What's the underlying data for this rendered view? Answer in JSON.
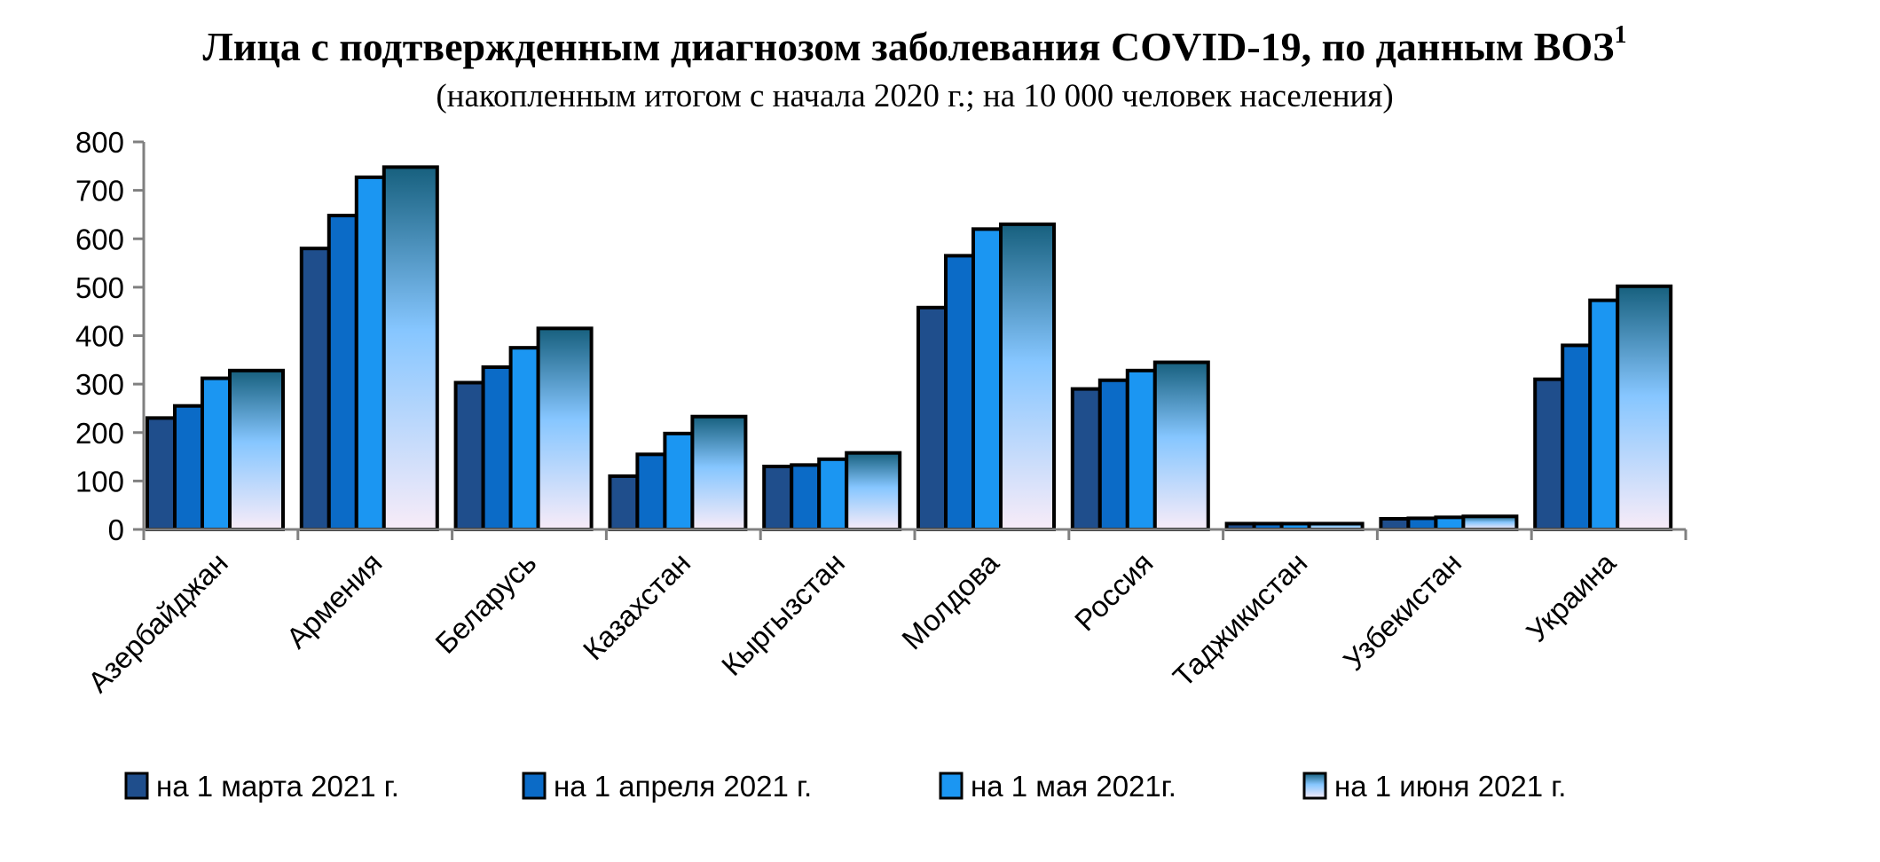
{
  "chart_data": {
    "type": "bar",
    "title": "Лица с подтвержденным диагнозом заболевания  COVID-19, по данным ВОЗ",
    "title_footnote": "1",
    "subtitle": "(накопленным итогом с начала 2020 г.; на 10 000 человек населения)",
    "xlabel": "",
    "ylabel": "",
    "ylim": [
      0,
      800
    ],
    "yticks": [
      "0",
      "100",
      "200",
      "300",
      "400",
      "500",
      "600",
      "700",
      "800"
    ],
    "grid": false,
    "legend_position": "bottom",
    "categories": [
      "Азербайджан",
      "Армения",
      "Беларусь",
      "Казахстан",
      "Кыргызстан",
      "Молдова",
      "Россия",
      "Таджикистан",
      "Узбекистан",
      "Украина"
    ],
    "series": [
      {
        "name": "на 1 марта 2021 г.",
        "color": "#1f4e8c",
        "values": [
          230,
          580,
          303,
          110,
          130,
          458,
          290,
          12,
          22,
          310
        ]
      },
      {
        "name": "на 1 апреля 2021 г.",
        "color": "#0b6bc7",
        "values": [
          255,
          648,
          335,
          155,
          133,
          565,
          308,
          12,
          23,
          380
        ]
      },
      {
        "name": "на 1 мая  2021г.",
        "color": "#1b96f2",
        "values": [
          312,
          727,
          375,
          198,
          145,
          620,
          328,
          12,
          25,
          473
        ]
      },
      {
        "name": "на 1 июня 2021 г.",
        "color": "gradient",
        "values": [
          328,
          748,
          415,
          233,
          158,
          630,
          345,
          12,
          27,
          502
        ]
      }
    ]
  }
}
